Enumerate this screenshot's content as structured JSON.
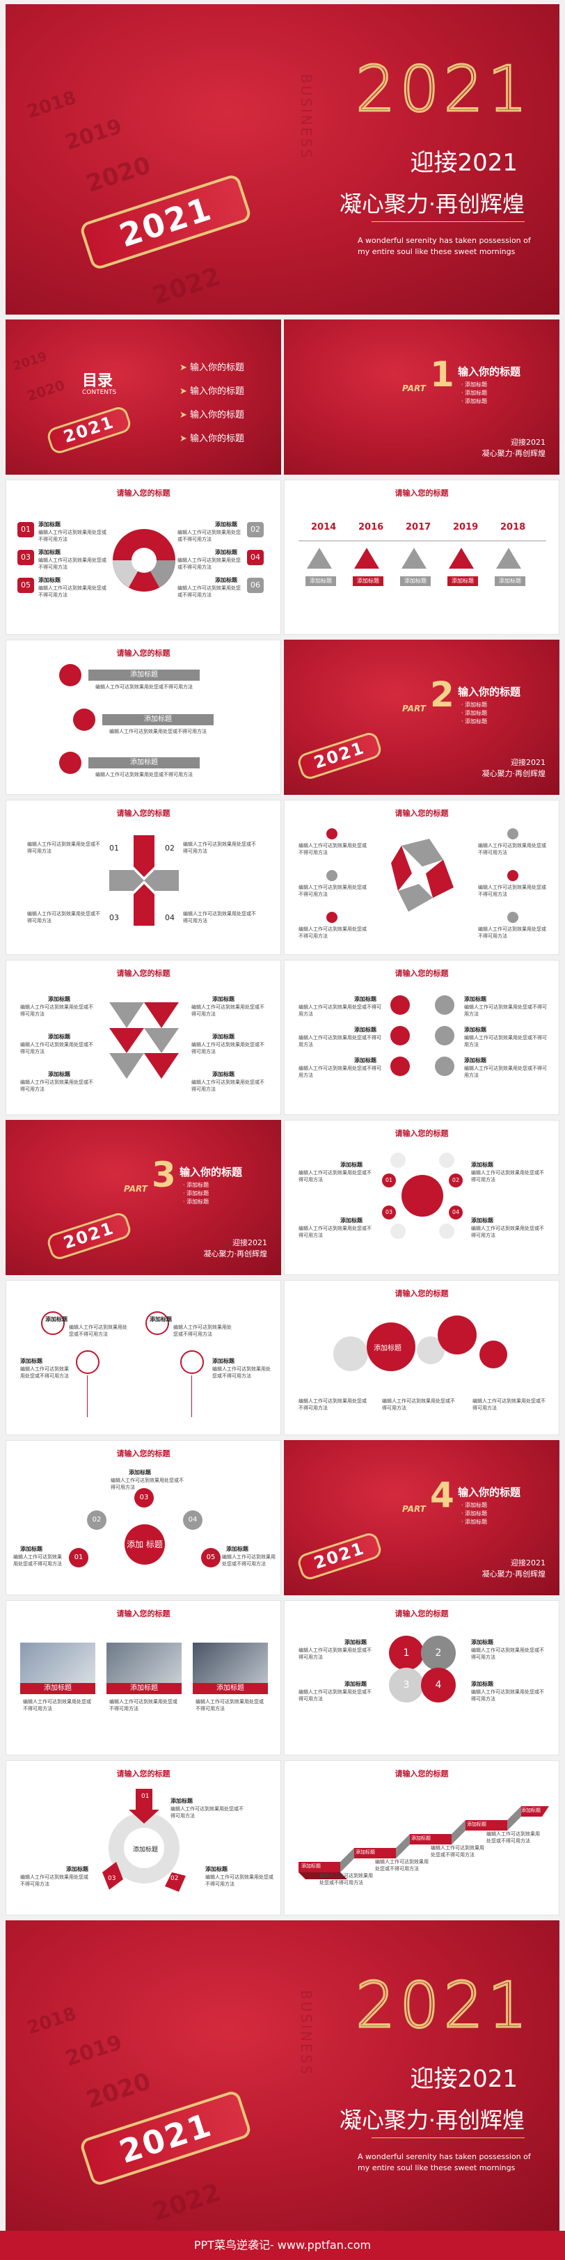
{
  "cover": {
    "big_year": "2021",
    "title": "迎接2021",
    "subtitle": "凝心聚力·再创辉煌",
    "english": "A wonderful serenity has taken possession of my entire soul like these sweet mornings",
    "years": [
      "2018",
      "2019",
      "2020",
      "2022"
    ],
    "badge_year": "2021",
    "vertical_text": "BUSINESS"
  },
  "toc": {
    "title": "目录",
    "subtitle": "CONTENTS",
    "items": [
      "输入你的标题",
      "输入你的标题",
      "输入你的标题",
      "输入你的标题"
    ],
    "badge_year": "2021"
  },
  "parts": [
    {
      "label": "PART",
      "number": "1",
      "title": "输入你的标题",
      "lines": [
        "· 添加标题",
        "· 添加标题",
        "· 添加标题"
      ],
      "footer1": "迎接2021",
      "footer2": "凝心聚力·再创辉煌"
    },
    {
      "label": "PART",
      "number": "2",
      "title": "输入你的标题",
      "lines": [
        "· 添加标题",
        "· 添加标题",
        "· 添加标题"
      ],
      "footer1": "迎接2021",
      "footer2": "凝心聚力·再创辉煌"
    },
    {
      "label": "PART",
      "number": "3",
      "title": "输入你的标题",
      "lines": [
        "· 添加标题",
        "· 添加标题",
        "· 添加标题"
      ],
      "footer1": "迎接2021",
      "footer2": "凝心聚力·再创辉煌"
    },
    {
      "label": "PART",
      "number": "4",
      "title": "输入你的标题",
      "lines": [
        "· 添加标题",
        "· 添加标题",
        "· 添加标题"
      ],
      "footer1": "迎接2021",
      "footer2": "凝心聚力·再创辉煌"
    }
  ],
  "content_slide_title": "请输入您的标题",
  "add_title": "添加标题",
  "body_text": "编辑人工作可达到效果用处您或不得可用方法",
  "numbers": [
    "01",
    "02",
    "03",
    "04",
    "05",
    "06"
  ],
  "timeline_years": [
    "2014",
    "2016",
    "2017",
    "2019",
    "2018"
  ],
  "center_add": "添加\n标题",
  "footer_text": "PPT菜鸟逆袭记- www.pptfan.com"
}
